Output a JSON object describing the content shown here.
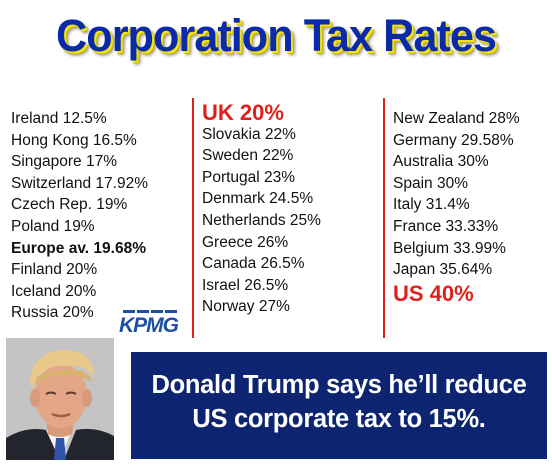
{
  "title": "Corporation Tax Rates",
  "column1": [
    {
      "text": "Ireland 12.5%"
    },
    {
      "text": "Hong Kong 16.5%"
    },
    {
      "text": "Singapore 17%"
    },
    {
      "text": "Switzerland 17.92%"
    },
    {
      "text": "Czech Rep. 19%"
    },
    {
      "text": "Poland 19%"
    },
    {
      "text": "Europe av. 19.68%"
    },
    {
      "text": "Finland 20%"
    },
    {
      "text": "Iceland 20%"
    },
    {
      "text": "Russia 20%"
    }
  ],
  "column2": [
    {
      "text": "UK 20%"
    },
    {
      "text": "Slovakia 22%"
    },
    {
      "text": "Sweden 22%"
    },
    {
      "text": "Portugal 23%"
    },
    {
      "text": "Denmark 24.5%"
    },
    {
      "text": "Netherlands 25%"
    },
    {
      "text": "Greece 26%"
    },
    {
      "text": "Canada 26.5%"
    },
    {
      "text": "Israel 26.5%"
    },
    {
      "text": "Norway 27%"
    }
  ],
  "column3": [
    {
      "text": "New Zealand 28%"
    },
    {
      "text": "Germany 29.58%"
    },
    {
      "text": "Australia 30%"
    },
    {
      "text": "Spain 30%"
    },
    {
      "text": "Italy 31.4%"
    },
    {
      "text": "France 33.33%"
    },
    {
      "text": "Belgium 33.99%"
    },
    {
      "text": "Japan 35.64%"
    },
    {
      "text": "US 40%"
    }
  ],
  "source_logo": "KPMG",
  "banner": {
    "line1": "Donald Trump says he’ll reduce",
    "line2": "US corporate tax to 15%."
  },
  "colors": {
    "title": "#0a2aa8",
    "title_shadow": "#f2e21c",
    "highlight": "#e0201b",
    "banner_bg": "#0d2570",
    "logo": "#1c4fa8"
  },
  "photo_icon": "portrait-photo"
}
